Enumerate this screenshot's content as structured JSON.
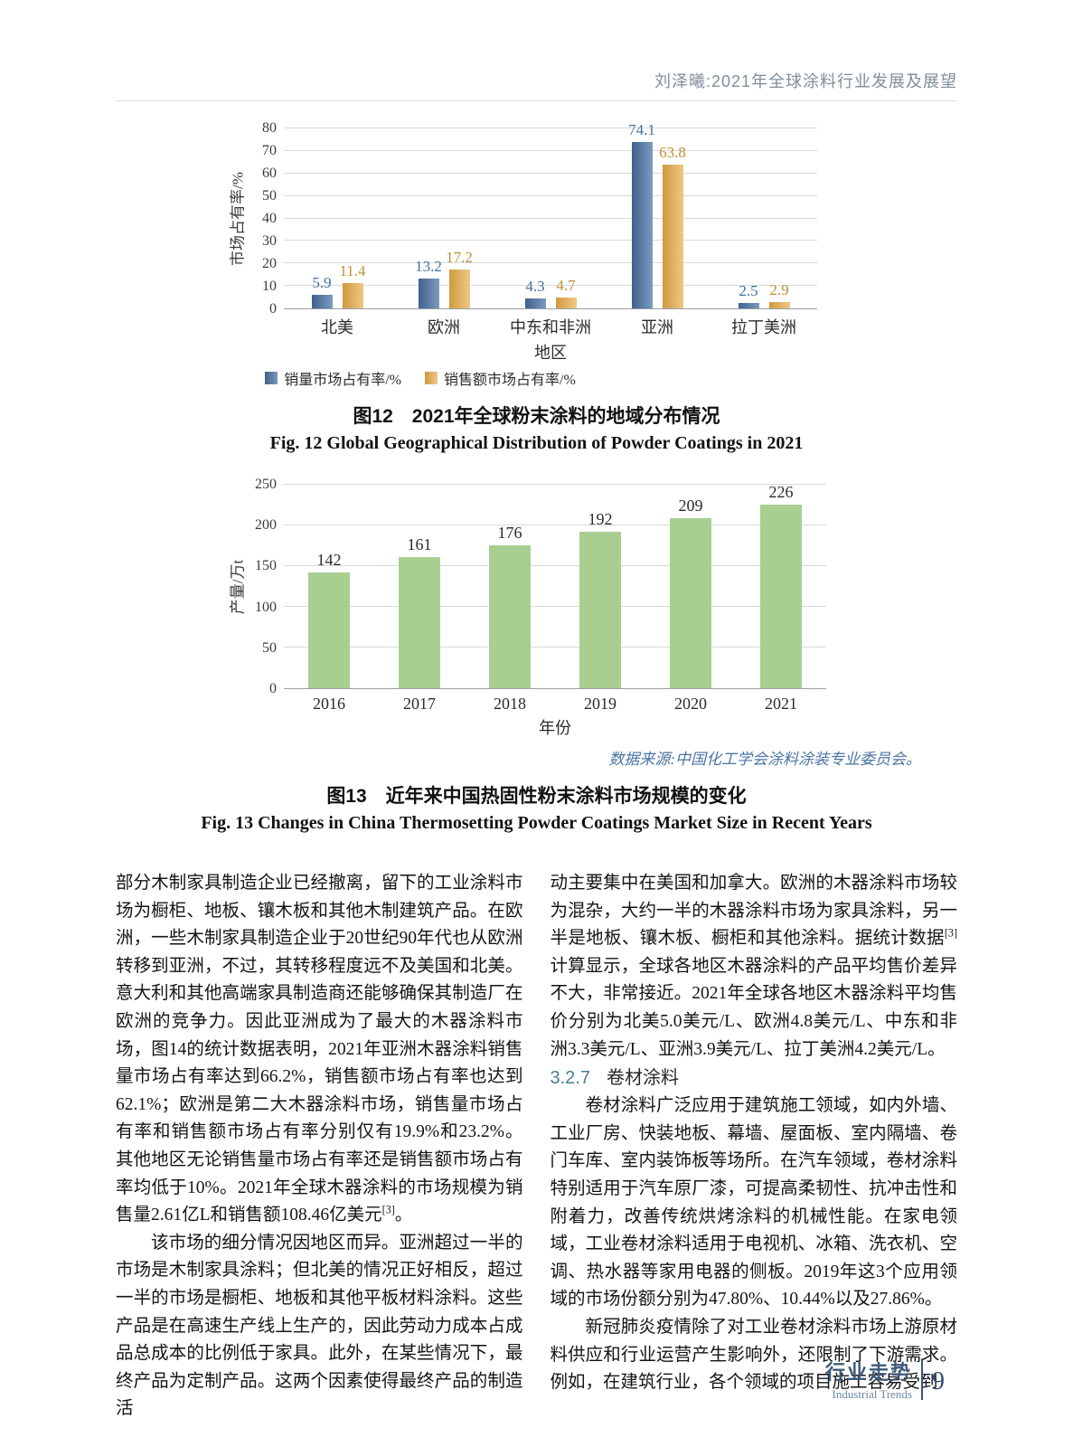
{
  "header": {
    "title": "刘泽曦:2021年全球涂料行业发展及展望"
  },
  "chart_data": [
    {
      "type": "bar",
      "title": "图12 2021年全球粉末涂料的地域分布情况",
      "categories": [
        "北美",
        "欧洲",
        "中东和非洲",
        "亚洲",
        "拉丁美洲"
      ],
      "series": [
        {
          "name": "销量市场占有率/%",
          "values": [
            5.9,
            13.2,
            4.3,
            74.1,
            2.5
          ],
          "gradient": [
            "#41618c",
            "#7b9bc1"
          ],
          "label_color": "#3f6fa3"
        },
        {
          "name": "销售额市场占有率/%",
          "values": [
            11.4,
            17.2,
            4.7,
            63.8,
            2.9
          ],
          "gradient": [
            "#d0993f",
            "#efc886"
          ],
          "label_color": "#c28f35"
        }
      ],
      "xlabel": "地区",
      "ylabel": "市场占有率/%",
      "ylim": [
        0,
        80
      ],
      "ytick_step": 10,
      "grid": true,
      "legend_position": "bottom"
    },
    {
      "type": "bar",
      "title": "图13 近年来中国热固性粉末涂料市场规模的变化",
      "categories": [
        "2016",
        "2017",
        "2018",
        "2019",
        "2020",
        "2021"
      ],
      "values": [
        142,
        161,
        176,
        192,
        209,
        226
      ],
      "series_color": "#a8cf90",
      "xlabel": "年份",
      "ylabel": "产量/万t",
      "ylim": [
        0,
        250
      ],
      "ytick_step": 50,
      "grid": true,
      "legend_position": "none"
    }
  ],
  "fig12": {
    "caption_zh": "图12　2021年全球粉末涂料的地域分布情况",
    "caption_en": "Fig. 12   Global Geographical Distribution of Powder Coatings in 2021"
  },
  "fig13": {
    "caption_zh": "图13　近年来中国热固性粉末涂料市场规模的变化",
    "caption_en": "Fig. 13   Changes in China Thermosetting Powder Coatings Market Size in Recent Years",
    "datasource": "数据来源:中国化工学会涂料涂装专业委员会。"
  },
  "body": {
    "left": {
      "p1a": "部分木制家具制造企业已经撤离，留下的工业涂料市场为橱柜、地板、镶木板和其他木制建筑产品。在欧洲，一些木制家具制造企业于20世纪90年代也从欧洲转移到亚洲，不过，其转移程度远不及美国和北美。意大利和其他高端家具制造商还能够确保其制造厂在欧洲的竞争力。因此亚洲成为了最大的木器涂料市场，图14的统计数据表明，2021年亚洲木器涂料销售量市场占有率达到66.2%，销售额市场占有率也达到62.1%；欧洲是第二大木器涂料市场，销售量市场占有率和销售额市场占有率分别仅有19.9%和23.2%。其他地区无论销售量市场占有率还是销售额市场占有率均低于10%。2021年全球木器涂料的市场规模为销售量2.61亿L和销售额108.46亿美元",
      "p1sup": "[3]",
      "p1b": "。",
      "p2": "该市场的细分情况因地区而异。亚洲超过一半的市场是木制家具涂料；但北美的情况正好相反，超过一半的市场是橱柜、地板和其他平板材料涂料。这些产品是在高速生产线上生产的，因此劳动力成本占成品总成本的比例低于家具。此外，在某些情况下，最终产品为定制产品。这两个因素使得最终产品的制造活"
    },
    "right": {
      "p1a": "动主要集中在美国和加拿大。欧洲的木器涂料市场较为混杂，大约一半的木器涂料市场为家具涂料，另一半是地板、镶木板、橱柜和其他涂料。据统计数据",
      "p1sup": "[3]",
      "p1b": "计算显示，全球各地区木器涂料的产品平均售价差异不大，非常接近。2021年全球各地区木器涂料平均售价分别为北美5.0美元/L、欧洲4.8美元/L、中东和非洲3.3美元/L、亚洲3.9美元/L、拉丁美洲4.2美元/L。",
      "heading_num": "3.2.7",
      "heading_title": "卷材涂料",
      "p2": "卷材涂料广泛应用于建筑施工领域，如内外墙、工业厂房、快装地板、幕墙、屋面板、室内隔墙、卷门车库、室内装饰板等场所。在汽车领域，卷材涂料特别适用于汽车原厂漆，可提高柔韧性、抗冲击性和附着力，改善传统烘烤涂料的机械性能。在家电领域，工业卷材涂料适用于电视机、冰箱、洗衣机、空调、热水器等家用电器的侧板。2019年这3个应用领域的市场份额分别为47.80%、10.44%以及27.86%。",
      "p3": "新冠肺炎疫情除了对工业卷材涂料市场上游原材料供应和行业运营产生影响外，还限制了下游需求。例如，在建筑行业，各个领域的项目施工容易受到"
    }
  },
  "footer": {
    "section_zh": "行业走势",
    "section_en": "Industrial Trends",
    "page_number": "9"
  }
}
